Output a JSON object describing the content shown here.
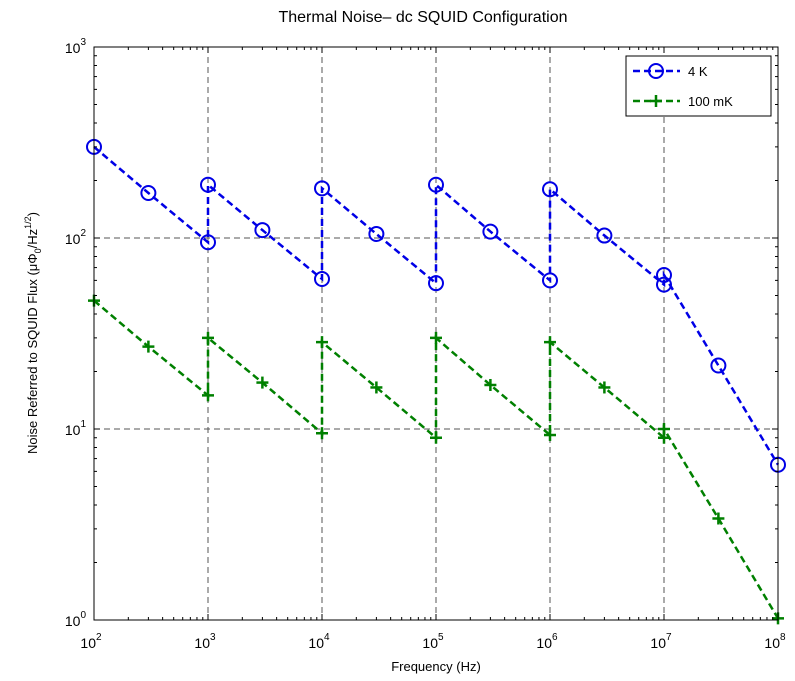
{
  "chart_data": {
    "type": "line",
    "title": "Thermal Noise– dc SQUID Configuration",
    "xlabel": "Frequency (Hz)",
    "ylabel_prefix": "Noise Referred to SQUID Flux (μΦ",
    "ylabel_sub": "0",
    "ylabel_mid": "/Hz",
    "ylabel_sup": "1/2",
    "ylabel_suffix": ")",
    "xscale": "log",
    "yscale": "log",
    "xlim": [
      100,
      100000000
    ],
    "ylim": [
      1,
      1000
    ],
    "grid": "dashed at decades",
    "legend_position": "top-right",
    "x_ticks": [
      {
        "base": "10",
        "exp": "2",
        "value": 100
      },
      {
        "base": "10",
        "exp": "3",
        "value": 1000
      },
      {
        "base": "10",
        "exp": "4",
        "value": 10000
      },
      {
        "base": "10",
        "exp": "5",
        "value": 100000
      },
      {
        "base": "10",
        "exp": "6",
        "value": 1000000
      },
      {
        "base": "10",
        "exp": "7",
        "value": 10000000
      },
      {
        "base": "10",
        "exp": "8",
        "value": 100000000
      }
    ],
    "y_ticks": [
      {
        "base": "10",
        "exp": "0",
        "value": 1
      },
      {
        "base": "10",
        "exp": "1",
        "value": 10
      },
      {
        "base": "10",
        "exp": "2",
        "value": 100
      },
      {
        "base": "10",
        "exp": "3",
        "value": 1000
      }
    ],
    "series": [
      {
        "name": "4 K",
        "color": "#0000e6",
        "marker": "circle",
        "x": [
          100,
          300,
          1000,
          1000,
          3000,
          10000,
          10000,
          30000,
          100000,
          100000,
          300000,
          1000000,
          1000000,
          3000000,
          10000000,
          10000000,
          30000000,
          100000000
        ],
        "y": [
          300,
          172,
          95,
          190,
          110,
          61,
          182,
          105,
          58,
          190,
          108,
          60,
          180,
          103,
          57,
          64,
          21.5,
          6.5
        ]
      },
      {
        "name": "100 mK",
        "color": "#008000",
        "marker": "plus",
        "x": [
          100,
          300,
          1000,
          1000,
          3000,
          10000,
          10000,
          30000,
          100000,
          100000,
          300000,
          1000000,
          1000000,
          3000000,
          10000000,
          10000000,
          30000000,
          100000000
        ],
        "y": [
          47,
          27,
          15,
          30,
          17.5,
          9.5,
          28.5,
          16.5,
          9,
          30,
          17,
          9.3,
          28.5,
          16.5,
          9,
          10,
          3.4,
          1.02
        ]
      }
    ]
  }
}
